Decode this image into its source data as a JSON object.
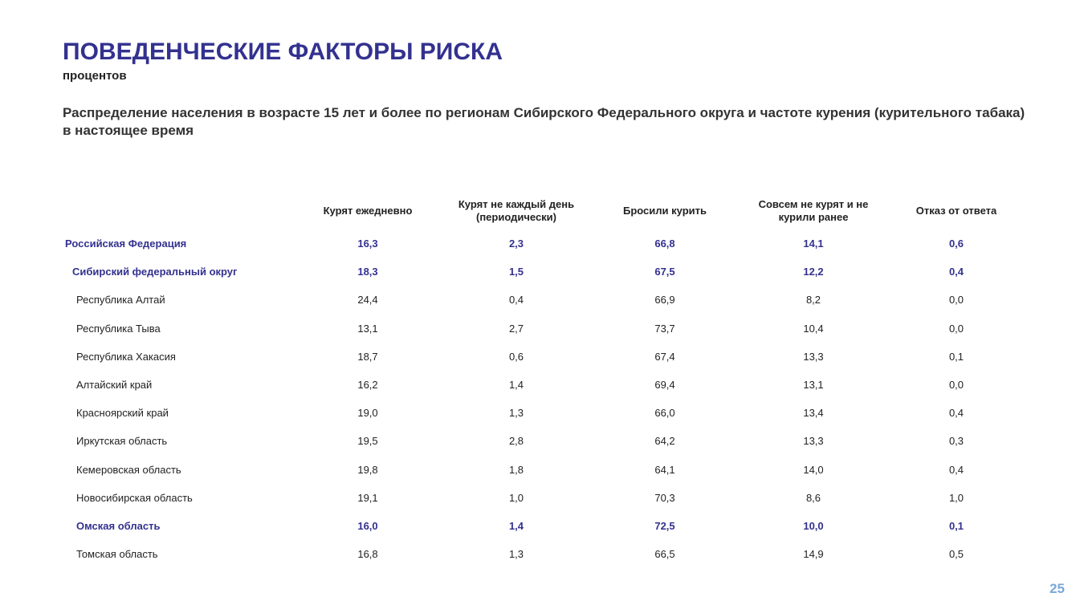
{
  "header": {
    "title": "ПОВЕДЕНЧЕСКИЕ ФАКТОРЫ РИСКА",
    "subtitle": "процентов",
    "description": "Распределение населения в возрасте 15 лет и более по регионам Сибирского Федерального округа и частоте курения (курительного табака) в настоящее время"
  },
  "colors": {
    "title": "#33318f",
    "highlight_rows": "#33318f",
    "page_number": "#7aa9d9"
  },
  "table": {
    "columns": [
      "",
      "Курят ежедневно",
      "Курят не каждый день (периодически)",
      "Бросили курить",
      "Совсем не курят и не курили ранее",
      "Отказ от ответа"
    ],
    "rows": [
      {
        "name": "Российская Федерация",
        "values": [
          "16,3",
          "2,3",
          "66,8",
          "14,1",
          "0,6"
        ],
        "bold": true,
        "level": 0
      },
      {
        "name": "Сибирский федеральный округ",
        "values": [
          "18,3",
          "1,5",
          "67,5",
          "12,2",
          "0,4"
        ],
        "bold": true,
        "level": 1
      },
      {
        "name": "Республика Алтай",
        "values": [
          "24,4",
          "0,4",
          "66,9",
          "8,2",
          "0,0"
        ],
        "bold": false,
        "level": 2
      },
      {
        "name": "Республика Тыва",
        "values": [
          "13,1",
          "2,7",
          "73,7",
          "10,4",
          "0,0"
        ],
        "bold": false,
        "level": 2
      },
      {
        "name": "Республика Хакасия",
        "values": [
          "18,7",
          "0,6",
          "67,4",
          "13,3",
          "0,1"
        ],
        "bold": false,
        "level": 2
      },
      {
        "name": "Алтайский край",
        "values": [
          "16,2",
          "1,4",
          "69,4",
          "13,1",
          "0,0"
        ],
        "bold": false,
        "level": 2
      },
      {
        "name": "Красноярский край",
        "values": [
          "19,0",
          "1,3",
          "66,0",
          "13,4",
          "0,4"
        ],
        "bold": false,
        "level": 2
      },
      {
        "name": "Иркутская область",
        "values": [
          "19,5",
          "2,8",
          "64,2",
          "13,3",
          "0,3"
        ],
        "bold": false,
        "level": 2
      },
      {
        "name": "Кемеровская область",
        "values": [
          "19,8",
          "1,8",
          "64,1",
          "14,0",
          "0,4"
        ],
        "bold": false,
        "level": 2
      },
      {
        "name": "Новосибирская область",
        "values": [
          "19,1",
          "1,0",
          "70,3",
          "8,6",
          "1,0"
        ],
        "bold": false,
        "level": 2
      },
      {
        "name": "Омская область",
        "values": [
          "16,0",
          "1,4",
          "72,5",
          "10,0",
          "0,1"
        ],
        "bold": true,
        "level": 2
      },
      {
        "name": "Томская область",
        "values": [
          "16,8",
          "1,3",
          "66,5",
          "14,9",
          "0,5"
        ],
        "bold": false,
        "level": 2
      }
    ]
  },
  "footer": {
    "page_number": "25"
  }
}
